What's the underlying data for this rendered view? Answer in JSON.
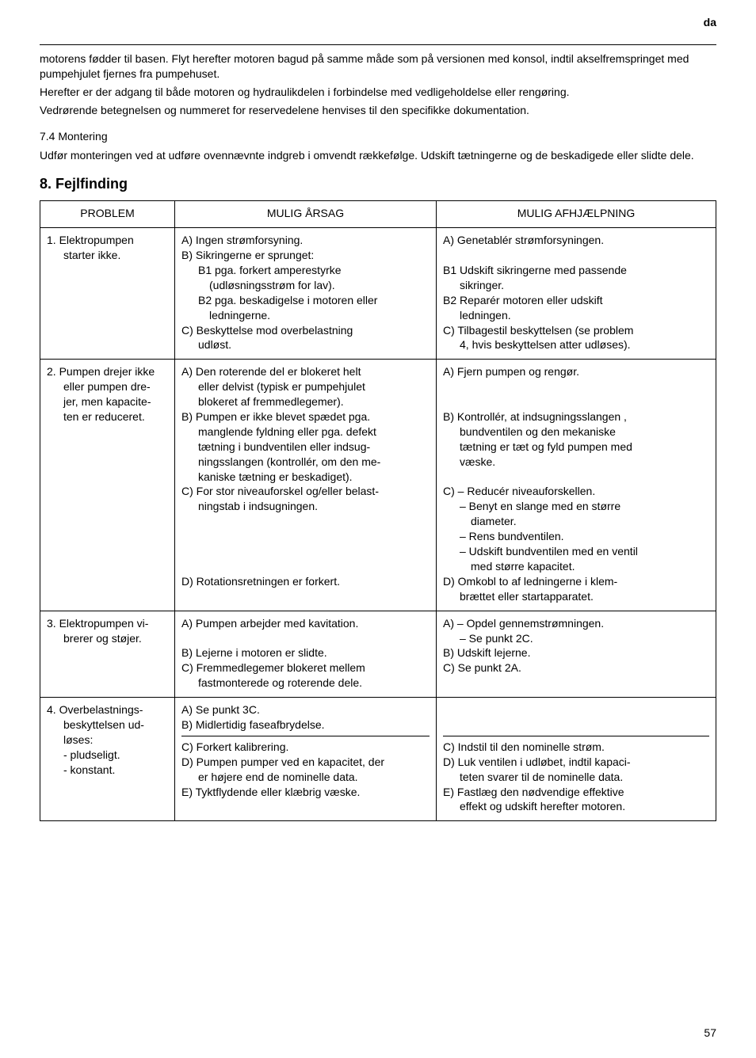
{
  "lang_marker": "da",
  "intro_paragraphs": [
    "motorens fødder til basen. Flyt herefter motoren bagud på samme måde som på versionen med konsol, indtil akselfremspringet med pumpehjulet fjernes fra pumpehuset.",
    "Herefter er der adgang til både motoren og hydraulikdelen i forbindelse med vedligeholdelse eller rengøring.",
    "Vedrørende betegnelsen og nummeret for reservedelene henvises til den specifikke dokumentation."
  ],
  "sub_heading": "7.4 Montering",
  "sub_para": "Udfør monteringen ved at udføre ovennævnte indgreb i omvendt rækkefølge. Udskift tætningerne og de beskadigede eller slidte dele.",
  "section_title": "8.  Fejlfinding",
  "table_headers": [
    "PROBLEM",
    "MULIG ÅRSAG",
    "MULIG AFHJÆLPNING"
  ],
  "row1": {
    "problem_l1": "1. Elektropumpen",
    "problem_l2": "starter ikke.",
    "cause_a": "A) Ingen strømforsyning.",
    "cause_b": "B) Sikringerne er sprunget:",
    "cause_b1": "B1 pga. forkert amperestyrke",
    "cause_b1c": "(udløsningsstrøm for lav).",
    "cause_b2": "B2 pga. beskadigelse i motoren eller",
    "cause_b2c": "ledningerne.",
    "cause_c": "C) Beskyttelse mod overbelastning",
    "cause_cc": "udløst.",
    "fix_a": "A) Genetablér strømforsyningen.",
    "fix_b1": "B1 Udskift sikringerne med passende",
    "fix_b1c": "sikringer.",
    "fix_b2": "B2 Reparér motoren eller udskift",
    "fix_b2c": "ledningen.",
    "fix_c": "C) Tilbagestil beskyttelsen (se problem",
    "fix_cc": "4, hvis beskyttelsen atter udløses)."
  },
  "row2": {
    "problem_l1": "2. Pumpen drejer ikke",
    "problem_l2": "eller pumpen dre-",
    "problem_l3": "jer, men kapacite-",
    "problem_l4": "ten er reduceret.",
    "cause_a1": "A) Den roterende del er blokeret helt",
    "cause_a2": "eller delvist (typisk er pumpehjulet",
    "cause_a3": "blokeret af fremmedlegemer).",
    "cause_b1": "B) Pumpen er ikke blevet spædet pga.",
    "cause_b2": "manglende fyldning eller pga. defekt",
    "cause_b3": "tætning i bundventilen eller indsug-",
    "cause_b4": "ningsslangen (kontrollér, om den me-",
    "cause_b5": "kaniske tætning er beskadiget).",
    "cause_c1": "C) For stor niveauforskel og/eller belast-",
    "cause_c2": "ningstab i indsugningen.",
    "cause_d": "D) Rotationsretningen er forkert.",
    "fix_a": "A) Fjern pumpen og rengør.",
    "fix_b1": "B) Kontrollér, at indsugningsslangen ,",
    "fix_b2": "bundventilen og den mekaniske",
    "fix_b3": "tætning er tæt og fyld pumpen med",
    "fix_b4": "væske.",
    "fix_c1": "C) – Reducér niveauforskellen.",
    "fix_c2": "– Benyt en slange med en større",
    "fix_c3": "diameter.",
    "fix_c4": "– Rens bundventilen.",
    "fix_c5": "– Udskift bundventilen med en ventil",
    "fix_c6": "med større kapacitet.",
    "fix_d1": "D) Omkobl to af ledningerne i klem-",
    "fix_d2": "brættet eller startapparatet."
  },
  "row3": {
    "problem_l1": "3. Elektropumpen vi-",
    "problem_l2": "brerer og støjer.",
    "cause_a": "A) Pumpen arbejder med kavitation.",
    "cause_b": "B) Lejerne i motoren er slidte.",
    "cause_c1": "C) Fremmedlegemer blokeret mellem",
    "cause_c2": "fastmonterede og roterende dele.",
    "fix_a1": "A) – Opdel gennemstrømningen.",
    "fix_a2": "– Se punkt 2C.",
    "fix_b": "B) Udskift lejerne.",
    "fix_c": "C) Se punkt 2A."
  },
  "row4": {
    "problem_l1": "4.  Overbelastnings-",
    "problem_l2": "beskyttelsen ud-",
    "problem_l3": "løses:",
    "problem_l4": "- pludseligt.",
    "problem_l5": "- konstant.",
    "cause_a": "A) Se punkt 3C.",
    "cause_b": "B) Midlertidig faseafbrydelse.",
    "cause_c": "C) Forkert kalibrering.",
    "cause_d1": "D) Pumpen pumper ved en kapacitet, der",
    "cause_d2": "er højere end de nominelle data.",
    "cause_e": "E) Tyktflydende eller klæbrig væske.",
    "fix_c": "C) Indstil til den nominelle strøm.",
    "fix_d1": "D) Luk ventilen i udløbet, indtil kapaci-",
    "fix_d2": "teten svarer til de nominelle data.",
    "fix_e1": "E) Fastlæg den nødvendige effektive",
    "fix_e2": "effekt og udskift herefter motoren."
  },
  "page_number": "57"
}
